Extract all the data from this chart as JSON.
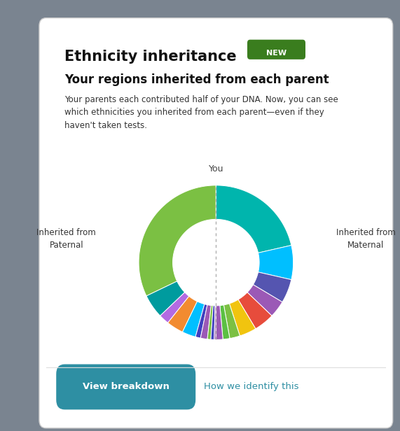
{
  "title": "Ethnicity inheritance",
  "new_badge": "NEW",
  "subtitle": "Your regions inherited from each parent",
  "body_text": "Your parents each contributed half of your DNA. Now, you can see\nwhich ethnicities you inherited from each parent—even if they\nhaven't taken tests.",
  "you_label": "You",
  "paternal_label": "Inherited from\nPaternal",
  "maternal_label": "Inherited from\nMaternal",
  "btn_text": "View breakdown",
  "link_text": "How we identify this",
  "btn_color": "#2e8fa3",
  "link_color": "#2e8fa3",
  "badge_bg": "#3a7d1e",
  "badge_text_color": "#ffffff",
  "outer_background": "#7a8490",
  "panel_bg": "#ffffff",
  "paternal_segments": [
    {
      "value": 45,
      "color": "#7bc043"
    },
    {
      "value": 7,
      "color": "#009b9e"
    },
    {
      "value": 3,
      "color": "#b36ae2"
    },
    {
      "value": 5,
      "color": "#f28b30"
    },
    {
      "value": 4,
      "color": "#00bfff"
    },
    {
      "value": 1.5,
      "color": "#4040c0"
    },
    {
      "value": 2,
      "color": "#9b59b6"
    },
    {
      "value": 1,
      "color": "#7bc043"
    },
    {
      "value": 1,
      "color": "#4040c0"
    },
    {
      "value": 0.5,
      "color": "#9b59b6"
    }
  ],
  "maternal_segments": [
    {
      "value": 30,
      "color": "#00b5ad"
    },
    {
      "value": 10,
      "color": "#00bfff"
    },
    {
      "value": 7,
      "color": "#5555b0"
    },
    {
      "value": 5,
      "color": "#9b59b6"
    },
    {
      "value": 6,
      "color": "#e74c3c"
    },
    {
      "value": 5,
      "color": "#f1c40f"
    },
    {
      "value": 3,
      "color": "#7bc043"
    },
    {
      "value": 2,
      "color": "#5bc043"
    },
    {
      "value": 2,
      "color": "#9b59b6"
    }
  ]
}
